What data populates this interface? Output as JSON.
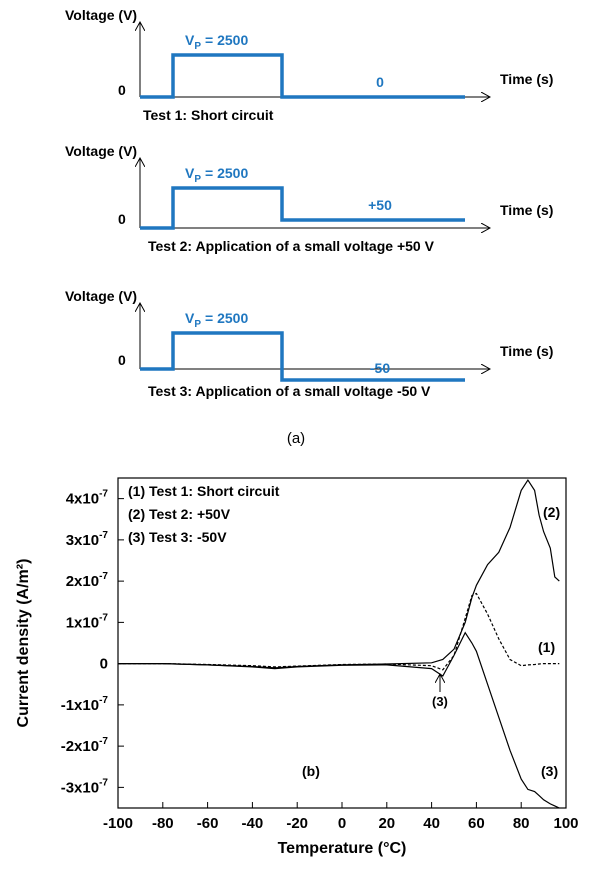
{
  "panel_a": {
    "tests": [
      {
        "y_label": "Voltage (V)",
        "pulse_symbol": "V",
        "pulse_subscript": "P",
        "pulse_value": "= 2500",
        "zero": "0",
        "after_label": "0",
        "x_label": "Time (s)",
        "caption": "Test 1: Short circuit"
      },
      {
        "y_label": "Voltage (V)",
        "pulse_symbol": "V",
        "pulse_subscript": "P",
        "pulse_value": "= 2500",
        "zero": "0",
        "after_label": "+50",
        "x_label": "Time (s)",
        "caption": "Test 2: Application of a small voltage +50 V"
      },
      {
        "y_label": "Voltage (V)",
        "pulse_symbol": "V",
        "pulse_subscript": "P",
        "pulse_value": "= 2500",
        "zero": "0",
        "after_label": "-50",
        "x_label": "Time (s)",
        "caption": "Test 3: Application of a small voltage -50 V"
      }
    ],
    "label": "(a)"
  },
  "chart_data": {
    "type": "line",
    "xlabel": "Temperature (°C)",
    "ylabel": "Current density (A/m²)",
    "xlim": [
      -100,
      100
    ],
    "xticks": [
      -100,
      -80,
      -60,
      -40,
      -20,
      0,
      20,
      40,
      60,
      80,
      100
    ],
    "ylim": [
      -3.5e-07,
      4.5e-07
    ],
    "yticks": [
      {
        "value": 4e-07,
        "label": "4x10",
        "exponent": "-7"
      },
      {
        "value": 3e-07,
        "label": "3x10",
        "exponent": "-7"
      },
      {
        "value": 2e-07,
        "label": "2x10",
        "exponent": "-7"
      },
      {
        "value": 1e-07,
        "label": "1x10",
        "exponent": "-7"
      },
      0,
      {
        "value": -1e-07,
        "label": "-1x10",
        "exponent": "-7"
      },
      {
        "value": -2e-07,
        "label": "-2x10",
        "exponent": "-7"
      },
      {
        "value": -3e-07,
        "label": "-3x10",
        "exponent": "-7"
      }
    ],
    "x": [
      -100,
      -80,
      -60,
      -40,
      -30,
      -20,
      0,
      20,
      40,
      45,
      50,
      55,
      58,
      60,
      65,
      70,
      75,
      80,
      83,
      86,
      88,
      90,
      93,
      95,
      97
    ],
    "series": [
      {
        "name": "(1) Test 1: Short circuit",
        "color": "#000000",
        "style": "dashed",
        "values": [
          0,
          0,
          -2e-09,
          -5e-09,
          -8e-09,
          -6e-09,
          -2e-09,
          -1e-09,
          -5e-09,
          -1.5e-08,
          2e-08,
          1.1e-07,
          1.65e-07,
          1.7e-07,
          1.2e-07,
          6e-08,
          1e-08,
          -5e-09,
          -3e-09,
          -2e-09,
          -1e-09,
          0,
          0,
          0,
          0
        ]
      },
      {
        "name": "(2) Test 2: +50V",
        "color": "#000000",
        "style": "solid",
        "values": [
          0,
          0,
          -3e-09,
          -7e-09,
          -1e-08,
          -7e-09,
          -3e-09,
          -1e-09,
          2e-09,
          1e-08,
          3.5e-08,
          1e-07,
          1.6e-07,
          1.9e-07,
          2.4e-07,
          2.7e-07,
          3.3e-07,
          4.2e-07,
          4.45e-07,
          4.2e-07,
          3.6e-07,
          3.2e-07,
          2.8e-07,
          2.1e-07,
          2e-07
        ]
      },
      {
        "name": "(3) Test 3:  -50V",
        "color": "#000000",
        "style": "solid",
        "values": [
          0,
          0,
          -3e-09,
          -8e-09,
          -1.2e-08,
          -8e-09,
          -4e-09,
          -3e-09,
          -1.2e-08,
          -3e-08,
          2e-08,
          7.5e-08,
          5e-08,
          3e-08,
          -5e-08,
          -1.3e-07,
          -2.1e-07,
          -2.8e-07,
          -3.05e-07,
          -3.1e-07,
          -3.2e-07,
          -3.3e-07,
          -3.4e-07,
          -3.45e-07,
          -3.5e-07
        ]
      }
    ],
    "annotations": [
      "(1)",
      "(2)",
      "(3)",
      "(3)",
      "(b)"
    ]
  }
}
